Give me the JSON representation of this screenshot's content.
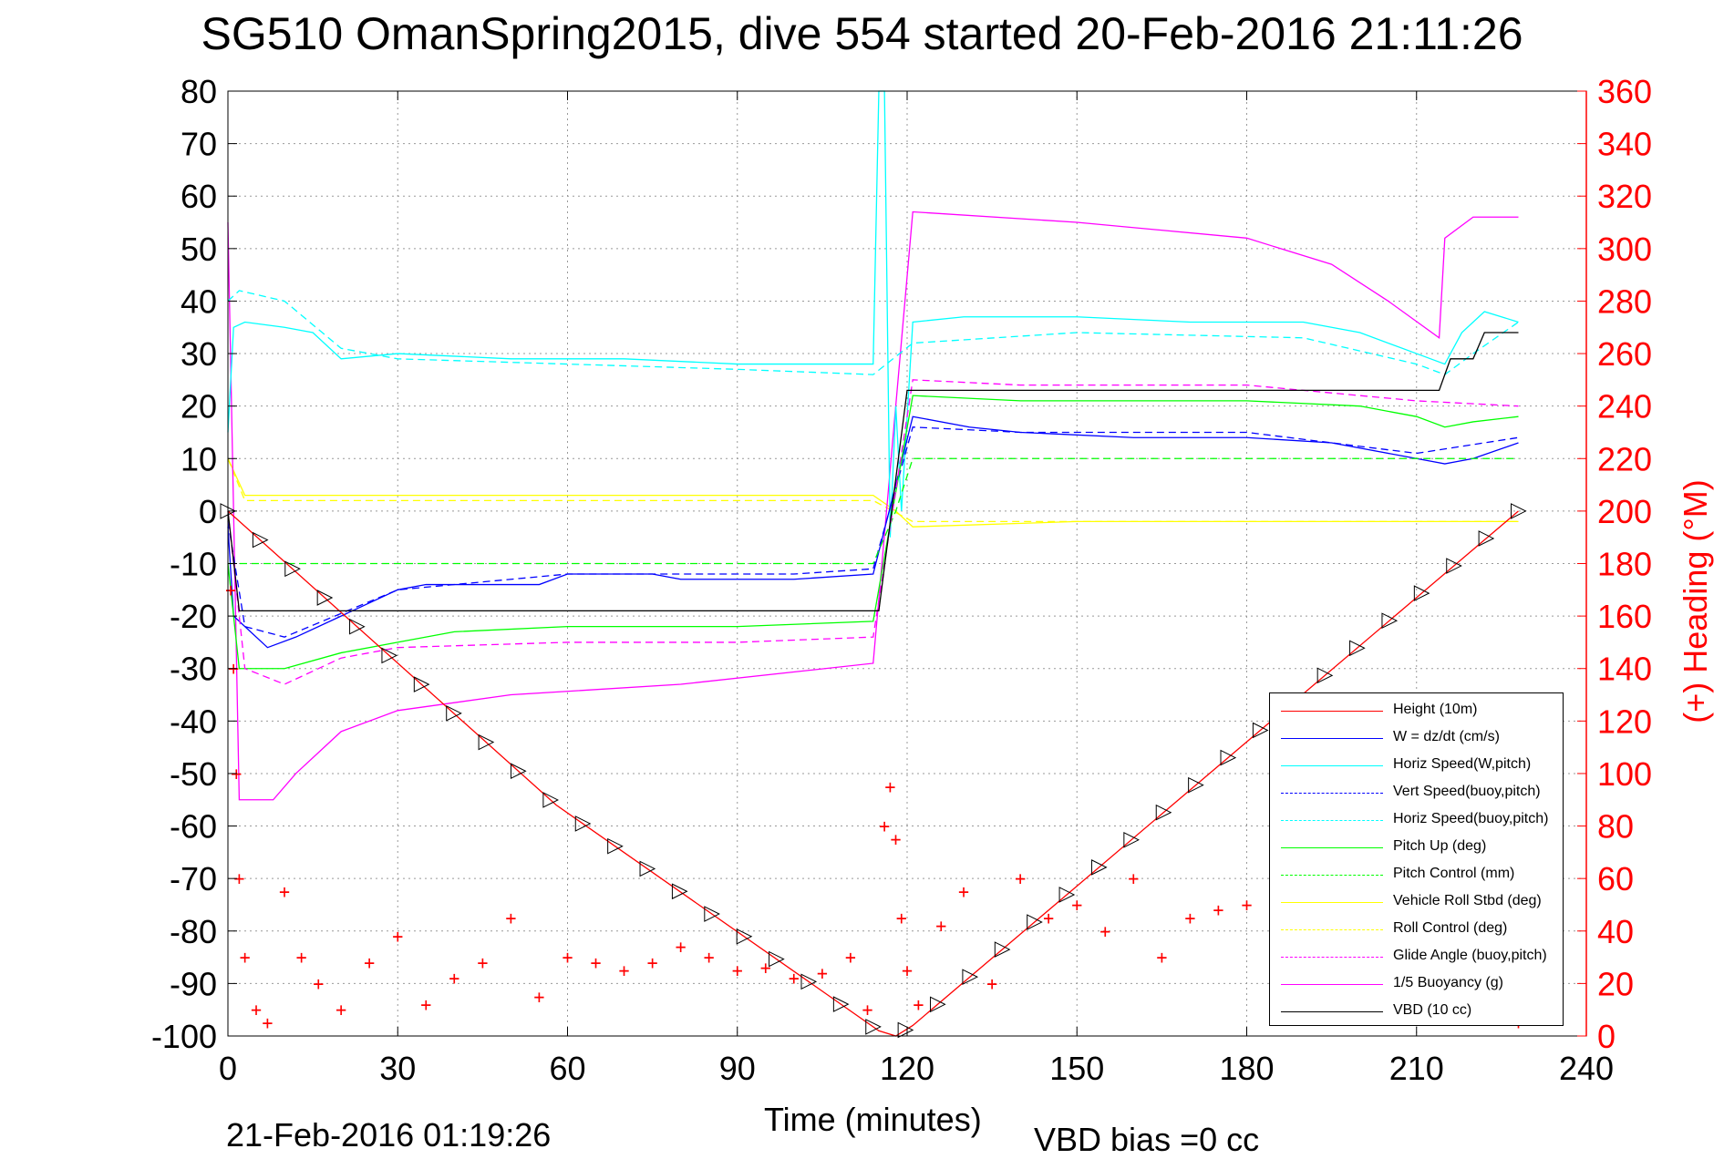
{
  "title": "SG510 OmanSpring2015, dive 554 started 20-Feb-2016 21:11:26",
  "footer": {
    "end_time": "21-Feb-2016 01:19:26",
    "vbd_bias": "VBD bias =0 cc"
  },
  "chart_data": {
    "type": "line",
    "xlabel": "Time (minutes)",
    "ylabel": "",
    "ylabel_right": "(+) Heading (°M)",
    "xlim": [
      0,
      240
    ],
    "ylim": [
      -100,
      80
    ],
    "ylim_right": [
      0,
      360
    ],
    "x_ticks": [
      0,
      30,
      60,
      90,
      120,
      150,
      180,
      210,
      240
    ],
    "y_ticks": [
      80,
      70,
      60,
      50,
      40,
      30,
      20,
      10,
      0,
      -10,
      -20,
      -30,
      -40,
      -50,
      -60,
      -70,
      -80,
      -90,
      -100
    ],
    "y_ticks_right": [
      360,
      340,
      320,
      300,
      280,
      260,
      240,
      220,
      200,
      180,
      160,
      140,
      120,
      100,
      80,
      60,
      40,
      20,
      0
    ],
    "grid": true,
    "legend_position": "bottom-right",
    "series": [
      {
        "name": "Height (10m)",
        "color": "#ff0000",
        "style": "solid",
        "x": [
          0,
          58,
          115,
          118,
          121,
          228
        ],
        "y": [
          0,
          -56,
          -99,
          -100,
          -98,
          0
        ]
      },
      {
        "name": "W = dz/dt (cm/s)",
        "color": "#0000ff",
        "style": "solid",
        "x": [
          0,
          1,
          3,
          7,
          12,
          20,
          30,
          35,
          55,
          60,
          75,
          80,
          100,
          114,
          118,
          121,
          131,
          140,
          160,
          180,
          195,
          210,
          215,
          220,
          228
        ],
        "y": [
          -3,
          -20,
          -22,
          -26,
          -24,
          -20,
          -15,
          -14,
          -14,
          -12,
          -12,
          -13,
          -13,
          -12,
          5,
          18,
          16,
          15,
          14,
          14,
          13,
          10,
          9,
          10,
          13
        ]
      },
      {
        "name": "Horiz Speed(W,pitch)",
        "color": "#00ffff",
        "style": "solid",
        "x": [
          0,
          1,
          3,
          10,
          15,
          20,
          30,
          50,
          70,
          90,
          114,
          115,
          116,
          117,
          118,
          119,
          121,
          130,
          150,
          170,
          190,
          200,
          210,
          215,
          218,
          222,
          228
        ],
        "y": [
          15,
          35,
          36,
          35,
          34,
          29,
          30,
          29,
          29,
          28,
          28,
          80,
          80,
          -5,
          20,
          0,
          36,
          37,
          37,
          36,
          36,
          34,
          30,
          28,
          34,
          38,
          36
        ]
      },
      {
        "name": "Vert Speed(buoy,pitch)",
        "color": "#0000ff",
        "style": "dashed",
        "x": [
          0,
          3,
          10,
          30,
          60,
          100,
          114,
          121,
          140,
          180,
          210,
          228
        ],
        "y": [
          -2,
          -22,
          -24,
          -15,
          -12,
          -12,
          -11,
          16,
          15,
          15,
          11,
          14
        ]
      },
      {
        "name": "Horiz Speed(buoy,pitch)",
        "color": "#00ffff",
        "style": "dashed",
        "x": [
          0,
          2,
          10,
          20,
          30,
          60,
          90,
          114,
          121,
          150,
          190,
          210,
          215,
          220,
          228
        ],
        "y": [
          40,
          42,
          40,
          31,
          29,
          28,
          27,
          26,
          32,
          34,
          33,
          28,
          26,
          30,
          36
        ]
      },
      {
        "name": "Pitch Up (deg)",
        "color": "#00ff00",
        "style": "solid",
        "x": [
          0,
          2,
          10,
          20,
          30,
          40,
          60,
          90,
          114,
          121,
          140,
          180,
          200,
          210,
          215,
          220,
          228
        ],
        "y": [
          -10,
          -30,
          -30,
          -27,
          -25,
          -23,
          -22,
          -22,
          -21,
          22,
          21,
          21,
          20,
          18,
          16,
          17,
          18
        ]
      },
      {
        "name": "Pitch Control (mm)",
        "color": "#00ff00",
        "style": "dashed",
        "x": [
          0,
          2,
          114,
          118,
          121,
          228
        ],
        "y": [
          -10,
          -10,
          -10,
          0,
          10,
          10
        ]
      },
      {
        "name": "Vehicle Roll Stbd (deg)",
        "color": "#ffff00",
        "style": "solid",
        "x": [
          0,
          3,
          10,
          30,
          60,
          90,
          114,
          118,
          121,
          150,
          180,
          210,
          228
        ],
        "y": [
          10,
          3,
          3,
          3,
          3,
          3,
          3,
          0,
          -3,
          -2,
          -2,
          -2,
          -2
        ]
      },
      {
        "name": "Roll Control (deg)",
        "color": "#ffff00",
        "style": "dashed",
        "x": [
          0,
          3,
          114,
          121,
          228
        ],
        "y": [
          10,
          2,
          2,
          -2,
          -2
        ]
      },
      {
        "name": "Glide Angle (buoy,pitch)",
        "color": "#ff00ff",
        "style": "dashed",
        "x": [
          0,
          3,
          10,
          20,
          30,
          60,
          90,
          114,
          121,
          140,
          180,
          210,
          228
        ],
        "y": [
          0,
          -30,
          -33,
          -28,
          -26,
          -25,
          -25,
          -24,
          25,
          24,
          24,
          21,
          20
        ]
      },
      {
        "name": "1/5 Buoyancy (g)",
        "color": "#ff00ff",
        "style": "solid",
        "x": [
          0,
          2,
          8,
          12,
          20,
          30,
          50,
          80,
          114,
          121,
          150,
          180,
          195,
          205,
          214,
          215,
          220,
          228
        ],
        "y": [
          55,
          -55,
          -55,
          -50,
          -42,
          -38,
          -35,
          -33,
          -29,
          57,
          55,
          52,
          47,
          40,
          33,
          52,
          56,
          56
        ]
      },
      {
        "name": "VBD (10 cc)",
        "color": "#000000",
        "style": "solid",
        "x": [
          0,
          2,
          115,
          120,
          214,
          216,
          220,
          222,
          228
        ],
        "y": [
          0,
          -19,
          -19,
          23,
          23,
          29,
          29,
          34,
          34
        ]
      }
    ],
    "heading_series": {
      "name": "(+) Heading (°M)",
      "color": "#ff0000",
      "marker": "+",
      "x": [
        0.5,
        1,
        1.5,
        2,
        3,
        5,
        7,
        10,
        13,
        16,
        20,
        25,
        30,
        35,
        40,
        45,
        50,
        55,
        60,
        65,
        70,
        75,
        80,
        85,
        90,
        95,
        100,
        105,
        110,
        113,
        116,
        117,
        118,
        119,
        120,
        122,
        126,
        130,
        135,
        140,
        145,
        150,
        155,
        160,
        165,
        170,
        175,
        180,
        185,
        190,
        195,
        200,
        205,
        210,
        215,
        220,
        225,
        228
      ],
      "y": [
        170,
        140,
        100,
        60,
        30,
        10,
        5,
        55,
        30,
        20,
        10,
        28,
        38,
        12,
        22,
        28,
        45,
        15,
        30,
        28,
        25,
        28,
        34,
        30,
        25,
        26,
        22,
        24,
        30,
        10,
        80,
        95,
        75,
        45,
        25,
        12,
        42,
        55,
        20,
        60,
        45,
        50,
        40,
        60,
        30,
        45,
        48,
        50,
        32,
        55,
        40,
        58,
        62,
        10,
        60,
        15,
        58,
        5
      ]
    }
  }
}
